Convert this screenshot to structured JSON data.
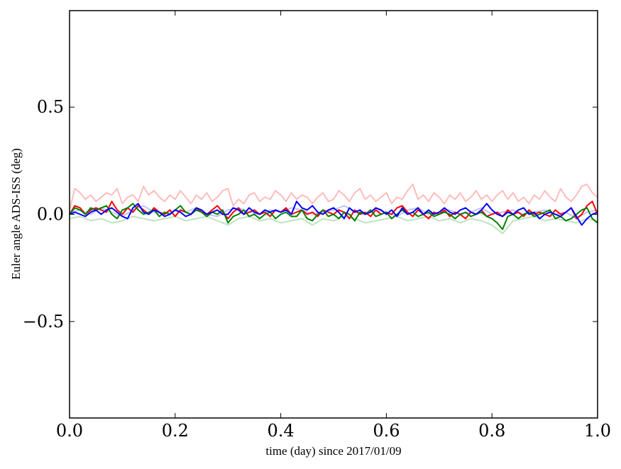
{
  "chart_data": {
    "type": "line",
    "xlabel": "time (day) since 2017/01/09",
    "ylabel": "Euler angle ADS-ISS (deg)",
    "xlim": [
      0.0,
      1.0
    ],
    "ylim": [
      -0.95,
      0.95
    ],
    "xticks": [
      0.0,
      0.2,
      0.4,
      0.6,
      0.8,
      1.0
    ],
    "xtick_labels": [
      "0.0",
      "0.2",
      "0.4",
      "0.6",
      "0.8",
      "1.0"
    ],
    "yticks": [
      -0.5,
      0.0,
      0.5
    ],
    "ytick_labels": [
      "−0.5",
      "0.0",
      "0.5"
    ],
    "grid": false,
    "series": [
      {
        "color": "#ffbcbc",
        "x": [
          0.0,
          0.01,
          0.02,
          0.03,
          0.04,
          0.05,
          0.06,
          0.07,
          0.08,
          0.09,
          0.1,
          0.11,
          0.12,
          0.13,
          0.14,
          0.15,
          0.16,
          0.17,
          0.18,
          0.19,
          0.2,
          0.21,
          0.22,
          0.23,
          0.24,
          0.25,
          0.26,
          0.27,
          0.28,
          0.29,
          0.3,
          0.31,
          0.32,
          0.33,
          0.34,
          0.35,
          0.36,
          0.37,
          0.38,
          0.39,
          0.4,
          0.41,
          0.42,
          0.43,
          0.44,
          0.45,
          0.46,
          0.47,
          0.48,
          0.49,
          0.5,
          0.51,
          0.52,
          0.53,
          0.54,
          0.55,
          0.56,
          0.57,
          0.58,
          0.59,
          0.6,
          0.61,
          0.62,
          0.63,
          0.64,
          0.65,
          0.66,
          0.67,
          0.68,
          0.69,
          0.7,
          0.71,
          0.72,
          0.73,
          0.74,
          0.75,
          0.76,
          0.77,
          0.78,
          0.79,
          0.8,
          0.81,
          0.82,
          0.83,
          0.84,
          0.85,
          0.86,
          0.87,
          0.88,
          0.89,
          0.9,
          0.91,
          0.92,
          0.93,
          0.94,
          0.95,
          0.96,
          0.97,
          0.98,
          0.99,
          1.0
        ],
        "y": [
          0.02,
          0.12,
          0.1,
          0.07,
          0.09,
          0.06,
          0.08,
          0.1,
          0.09,
          0.12,
          0.05,
          0.08,
          0.09,
          0.06,
          0.13,
          0.09,
          0.11,
          0.08,
          0.06,
          0.09,
          0.07,
          0.11,
          0.08,
          0.05,
          0.09,
          0.07,
          0.1,
          0.06,
          0.08,
          0.11,
          0.12,
          0.04,
          0.07,
          0.05,
          0.09,
          0.1,
          0.06,
          0.08,
          0.07,
          0.11,
          0.09,
          0.06,
          0.1,
          0.07,
          0.09,
          0.08,
          0.05,
          0.08,
          0.1,
          0.06,
          0.07,
          0.11,
          0.09,
          0.06,
          0.1,
          0.12,
          0.07,
          0.09,
          0.06,
          0.08,
          0.1,
          0.05,
          0.08,
          0.07,
          0.11,
          0.14,
          0.07,
          0.09,
          0.06,
          0.1,
          0.08,
          0.05,
          0.09,
          0.07,
          0.1,
          0.06,
          0.08,
          0.11,
          0.07,
          0.09,
          0.06,
          0.09,
          0.11,
          0.07,
          0.1,
          0.06,
          0.08,
          0.05,
          0.09,
          0.07,
          0.11,
          0.08,
          0.06,
          0.12,
          0.08,
          0.06,
          0.09,
          0.13,
          0.14,
          0.1,
          0.08
        ]
      },
      {
        "color": "#c4c4ff",
        "x": [
          0.0,
          0.02,
          0.04,
          0.06,
          0.08,
          0.1,
          0.12,
          0.14,
          0.16,
          0.18,
          0.2,
          0.22,
          0.24,
          0.26,
          0.28,
          0.3,
          0.32,
          0.34,
          0.36,
          0.38,
          0.4,
          0.42,
          0.44,
          0.46,
          0.48,
          0.5,
          0.52,
          0.54,
          0.56,
          0.58,
          0.6,
          0.62,
          0.64,
          0.66,
          0.68,
          0.7,
          0.72,
          0.74,
          0.76,
          0.78,
          0.8,
          0.82,
          0.84,
          0.86,
          0.88,
          0.9,
          0.92,
          0.94,
          0.96,
          0.98,
          1.0
        ],
        "y": [
          0.01,
          0.02,
          0.0,
          0.03,
          0.01,
          -0.01,
          0.02,
          0.04,
          0.01,
          0.0,
          0.02,
          0.01,
          0.03,
          0.0,
          -0.01,
          0.02,
          0.03,
          0.01,
          0.0,
          0.02,
          0.01,
          0.03,
          0.02,
          0.0,
          0.01,
          0.02,
          0.04,
          0.01,
          0.0,
          0.02,
          0.01,
          -0.01,
          0.02,
          0.03,
          0.0,
          0.01,
          0.02,
          0.0,
          0.01,
          0.03,
          0.0,
          0.01,
          0.02,
          0.0,
          0.01,
          0.02,
          0.0,
          0.01,
          -0.02,
          0.01,
          0.02
        ]
      },
      {
        "color": "#bfe3bf",
        "x": [
          0.0,
          0.02,
          0.04,
          0.06,
          0.08,
          0.1,
          0.12,
          0.14,
          0.16,
          0.18,
          0.2,
          0.22,
          0.24,
          0.26,
          0.28,
          0.3,
          0.32,
          0.34,
          0.36,
          0.38,
          0.4,
          0.42,
          0.44,
          0.46,
          0.48,
          0.5,
          0.52,
          0.54,
          0.56,
          0.58,
          0.6,
          0.62,
          0.64,
          0.66,
          0.68,
          0.7,
          0.72,
          0.74,
          0.76,
          0.78,
          0.8,
          0.82,
          0.84,
          0.86,
          0.88,
          0.9,
          0.92,
          0.94,
          0.96,
          0.98,
          1.0
        ],
        "y": [
          -0.02,
          -0.01,
          -0.03,
          -0.02,
          -0.04,
          -0.03,
          -0.01,
          -0.02,
          -0.03,
          -0.02,
          -0.01,
          -0.03,
          -0.02,
          -0.01,
          -0.03,
          -0.05,
          -0.02,
          -0.01,
          -0.03,
          -0.02,
          -0.04,
          -0.03,
          -0.02,
          -0.05,
          -0.02,
          -0.03,
          -0.01,
          -0.02,
          -0.04,
          -0.03,
          -0.02,
          -0.01,
          -0.03,
          -0.02,
          -0.01,
          -0.03,
          -0.02,
          -0.04,
          -0.02,
          -0.03,
          -0.05,
          -0.09,
          -0.03,
          -0.02,
          -0.01,
          -0.03,
          -0.02,
          -0.03,
          -0.04,
          -0.02,
          -0.03
        ]
      },
      {
        "color": "#ff0000",
        "x": [
          0.0,
          0.01,
          0.02,
          0.03,
          0.04,
          0.05,
          0.06,
          0.07,
          0.08,
          0.09,
          0.1,
          0.11,
          0.12,
          0.13,
          0.14,
          0.15,
          0.16,
          0.17,
          0.18,
          0.19,
          0.2,
          0.21,
          0.22,
          0.23,
          0.24,
          0.25,
          0.26,
          0.27,
          0.28,
          0.29,
          0.3,
          0.31,
          0.32,
          0.33,
          0.34,
          0.35,
          0.36,
          0.37,
          0.38,
          0.39,
          0.4,
          0.41,
          0.42,
          0.43,
          0.44,
          0.45,
          0.46,
          0.47,
          0.48,
          0.49,
          0.5,
          0.51,
          0.52,
          0.53,
          0.54,
          0.55,
          0.56,
          0.57,
          0.58,
          0.59,
          0.6,
          0.61,
          0.62,
          0.63,
          0.64,
          0.65,
          0.66,
          0.67,
          0.68,
          0.69,
          0.7,
          0.71,
          0.72,
          0.73,
          0.74,
          0.75,
          0.76,
          0.77,
          0.78,
          0.79,
          0.8,
          0.81,
          0.82,
          0.83,
          0.84,
          0.85,
          0.86,
          0.87,
          0.88,
          0.89,
          0.9,
          0.91,
          0.92,
          0.93,
          0.94,
          0.95,
          0.96,
          0.97,
          0.98,
          0.99,
          1.0
        ],
        "y": [
          0.0,
          0.04,
          0.03,
          0.0,
          0.02,
          0.03,
          0.02,
          0.01,
          0.06,
          0.02,
          0.0,
          0.03,
          0.01,
          0.04,
          0.02,
          0.0,
          0.03,
          0.01,
          0.0,
          0.02,
          -0.01,
          0.02,
          0.01,
          0.0,
          0.03,
          0.01,
          0.0,
          0.02,
          0.04,
          0.01,
          -0.02,
          0.01,
          0.03,
          0.0,
          0.01,
          0.02,
          0.0,
          0.01,
          -0.01,
          0.02,
          0.01,
          0.03,
          0.0,
          0.01,
          0.02,
          0.0,
          0.01,
          -0.01,
          0.02,
          0.01,
          0.0,
          0.02,
          0.01,
          -0.02,
          0.02,
          0.0,
          0.01,
          -0.01,
          0.02,
          0.0,
          0.01,
          0.0,
          0.03,
          0.04,
          0.01,
          -0.01,
          0.02,
          0.0,
          -0.02,
          0.01,
          0.0,
          0.02,
          -0.01,
          0.01,
          0.0,
          -0.02,
          0.01,
          0.0,
          0.02,
          -0.01,
          0.0,
          0.01,
          -0.01,
          0.02,
          0.0,
          0.01,
          -0.01,
          0.02,
          0.0,
          0.01,
          0.0,
          -0.01,
          0.02,
          0.0,
          0.01,
          0.03,
          -0.02,
          0.0,
          0.04,
          0.06,
          0.0
        ]
      },
      {
        "color": "#008000",
        "x": [
          0.0,
          0.01,
          0.02,
          0.03,
          0.04,
          0.05,
          0.06,
          0.07,
          0.08,
          0.09,
          0.1,
          0.11,
          0.12,
          0.13,
          0.14,
          0.15,
          0.16,
          0.17,
          0.18,
          0.19,
          0.2,
          0.21,
          0.22,
          0.23,
          0.24,
          0.25,
          0.26,
          0.27,
          0.28,
          0.29,
          0.3,
          0.31,
          0.32,
          0.33,
          0.34,
          0.35,
          0.36,
          0.37,
          0.38,
          0.39,
          0.4,
          0.41,
          0.42,
          0.43,
          0.44,
          0.45,
          0.46,
          0.47,
          0.48,
          0.49,
          0.5,
          0.51,
          0.52,
          0.53,
          0.54,
          0.55,
          0.56,
          0.57,
          0.58,
          0.59,
          0.6,
          0.61,
          0.62,
          0.63,
          0.64,
          0.65,
          0.66,
          0.67,
          0.68,
          0.69,
          0.7,
          0.71,
          0.72,
          0.73,
          0.74,
          0.75,
          0.76,
          0.77,
          0.78,
          0.79,
          0.8,
          0.81,
          0.82,
          0.83,
          0.84,
          0.85,
          0.86,
          0.87,
          0.88,
          0.89,
          0.9,
          0.91,
          0.92,
          0.93,
          0.94,
          0.95,
          0.96,
          0.97,
          0.98,
          0.99,
          1.0
        ],
        "y": [
          0.0,
          0.03,
          0.02,
          0.0,
          0.03,
          0.02,
          0.03,
          0.04,
          0.0,
          -0.02,
          0.02,
          0.03,
          0.05,
          0.02,
          0.0,
          0.01,
          0.02,
          -0.01,
          0.01,
          0.0,
          0.02,
          0.04,
          0.01,
          0.0,
          0.02,
          0.01,
          -0.01,
          0.01,
          0.0,
          0.02,
          -0.04,
          -0.01,
          0.0,
          0.02,
          -0.01,
          0.0,
          -0.02,
          0.0,
          0.01,
          -0.02,
          0.0,
          0.01,
          -0.01,
          -0.01,
          0.02,
          -0.02,
          -0.03,
          0.0,
          0.02,
          -0.01,
          0.0,
          -0.02,
          0.01,
          0.0,
          -0.03,
          0.01,
          0.0,
          0.02,
          -0.01,
          0.0,
          0.01,
          -0.02,
          0.0,
          0.02,
          0.0,
          0.01,
          -0.01,
          0.0,
          0.01,
          -0.01,
          0.0,
          0.01,
          0.0,
          -0.02,
          0.0,
          0.01,
          -0.01,
          0.0,
          0.01,
          -0.01,
          -0.02,
          -0.04,
          -0.07,
          -0.01,
          0.0,
          -0.02,
          0.0,
          0.01,
          -0.01,
          0.0,
          0.01,
          0.02,
          -0.02,
          -0.01,
          -0.03,
          -0.02,
          0.0,
          0.02,
          0.03,
          -0.02,
          -0.04
        ]
      },
      {
        "color": "#0000ff",
        "x": [
          0.0,
          0.01,
          0.02,
          0.03,
          0.04,
          0.05,
          0.06,
          0.07,
          0.08,
          0.09,
          0.1,
          0.11,
          0.12,
          0.13,
          0.14,
          0.15,
          0.16,
          0.17,
          0.18,
          0.19,
          0.2,
          0.21,
          0.22,
          0.23,
          0.24,
          0.25,
          0.26,
          0.27,
          0.28,
          0.29,
          0.3,
          0.31,
          0.32,
          0.33,
          0.34,
          0.35,
          0.36,
          0.37,
          0.38,
          0.39,
          0.4,
          0.41,
          0.42,
          0.43,
          0.44,
          0.45,
          0.46,
          0.47,
          0.48,
          0.49,
          0.5,
          0.51,
          0.52,
          0.53,
          0.54,
          0.55,
          0.56,
          0.57,
          0.58,
          0.59,
          0.6,
          0.61,
          0.62,
          0.63,
          0.64,
          0.65,
          0.66,
          0.67,
          0.68,
          0.69,
          0.7,
          0.71,
          0.72,
          0.73,
          0.74,
          0.75,
          0.76,
          0.77,
          0.78,
          0.79,
          0.8,
          0.81,
          0.82,
          0.83,
          0.84,
          0.85,
          0.86,
          0.87,
          0.88,
          0.89,
          0.9,
          0.91,
          0.92,
          0.93,
          0.94,
          0.95,
          0.96,
          0.97,
          0.98,
          0.99,
          1.0
        ],
        "y": [
          0.0,
          0.01,
          0.0,
          -0.01,
          0.01,
          0.02,
          0.0,
          0.02,
          0.03,
          0.01,
          -0.01,
          -0.02,
          0.03,
          0.05,
          0.01,
          0.0,
          0.02,
          0.01,
          -0.01,
          0.0,
          0.02,
          0.01,
          -0.01,
          0.0,
          0.03,
          0.02,
          0.0,
          0.01,
          0.02,
          0.0,
          0.0,
          0.03,
          0.02,
          0.0,
          0.03,
          0.01,
          0.0,
          0.02,
          0.01,
          0.02,
          0.01,
          0.02,
          0.0,
          0.06,
          0.03,
          0.02,
          0.04,
          0.01,
          0.0,
          0.02,
          0.03,
          0.01,
          -0.02,
          0.03,
          0.01,
          0.02,
          0.0,
          0.01,
          0.03,
          0.02,
          0.0,
          0.02,
          -0.01,
          0.03,
          0.0,
          0.01,
          0.03,
          0.0,
          0.02,
          0.0,
          0.01,
          0.03,
          0.01,
          0.0,
          0.02,
          0.03,
          0.01,
          0.0,
          0.02,
          0.05,
          0.02,
          0.0,
          -0.01,
          0.01,
          0.0,
          0.02,
          0.03,
          0.0,
          0.01,
          -0.02,
          0.0,
          0.01,
          0.0,
          -0.01,
          0.01,
          0.03,
          -0.01,
          -0.05,
          -0.02,
          0.0,
          0.01
        ]
      }
    ]
  }
}
